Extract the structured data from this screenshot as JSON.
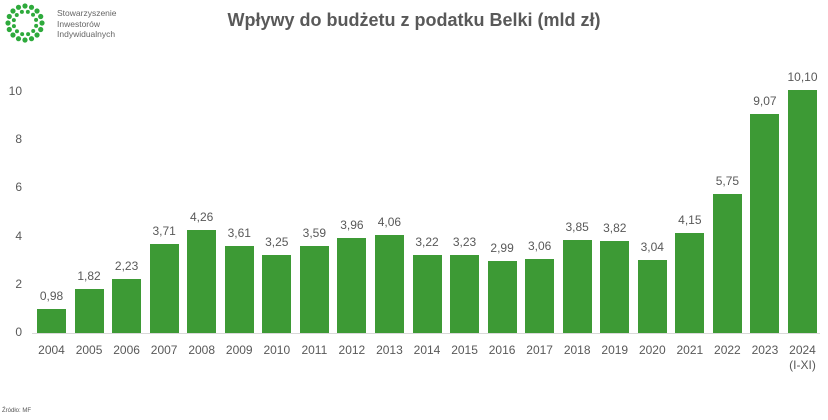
{
  "header": {
    "org_lines": [
      "Stowarzyszenie",
      "Inwestorów",
      "Indywidualnych"
    ],
    "title": "Wpływy do budżetu z podatku Belki (mld zł)"
  },
  "footer": {
    "source": "Źródło: MF"
  },
  "colors": {
    "bar": "#3d9a35",
    "logo": "#2eaa3c",
    "text": "#595959",
    "axis": "#d9d9d9"
  },
  "chart_data": {
    "type": "bar",
    "title": "Wpływy do budżetu z podatku Belki (mld zł)",
    "xlabel": "",
    "ylabel": "",
    "ylim": [
      0,
      10
    ],
    "yticks": [
      "0",
      "2",
      "4",
      "6",
      "8",
      "10"
    ],
    "grid": false,
    "legend": null,
    "categories": [
      "2004",
      "2005",
      "2006",
      "2007",
      "2008",
      "2009",
      "2010",
      "2011",
      "2012",
      "2013",
      "2014",
      "2015",
      "2016",
      "2017",
      "2018",
      "2019",
      "2020",
      "2021",
      "2022",
      "2023",
      "2024 (I-XI)"
    ],
    "values": [
      0.98,
      1.82,
      2.23,
      3.71,
      4.26,
      3.61,
      3.25,
      3.59,
      3.96,
      4.06,
      3.22,
      3.23,
      2.99,
      3.06,
      3.85,
      3.82,
      3.04,
      4.15,
      5.75,
      9.07,
      10.1
    ],
    "value_labels": [
      "0,98",
      "1,82",
      "2,23",
      "3,71",
      "4,26",
      "3,61",
      "3,25",
      "3,59",
      "3,96",
      "4,06",
      "3,22",
      "3,23",
      "2,99",
      "3,06",
      "3,85",
      "3,82",
      "3,04",
      "4,15",
      "5,75",
      "9,07",
      "10,10"
    ],
    "category_lines": [
      [
        "2004"
      ],
      [
        "2005"
      ],
      [
        "2006"
      ],
      [
        "2007"
      ],
      [
        "2008"
      ],
      [
        "2009"
      ],
      [
        "2010"
      ],
      [
        "2011"
      ],
      [
        "2012"
      ],
      [
        "2013"
      ],
      [
        "2014"
      ],
      [
        "2015"
      ],
      [
        "2016"
      ],
      [
        "2017"
      ],
      [
        "2018"
      ],
      [
        "2019"
      ],
      [
        "2020"
      ],
      [
        "2021"
      ],
      [
        "2022"
      ],
      [
        "2023"
      ],
      [
        "2024",
        "(I-XI)"
      ]
    ]
  }
}
